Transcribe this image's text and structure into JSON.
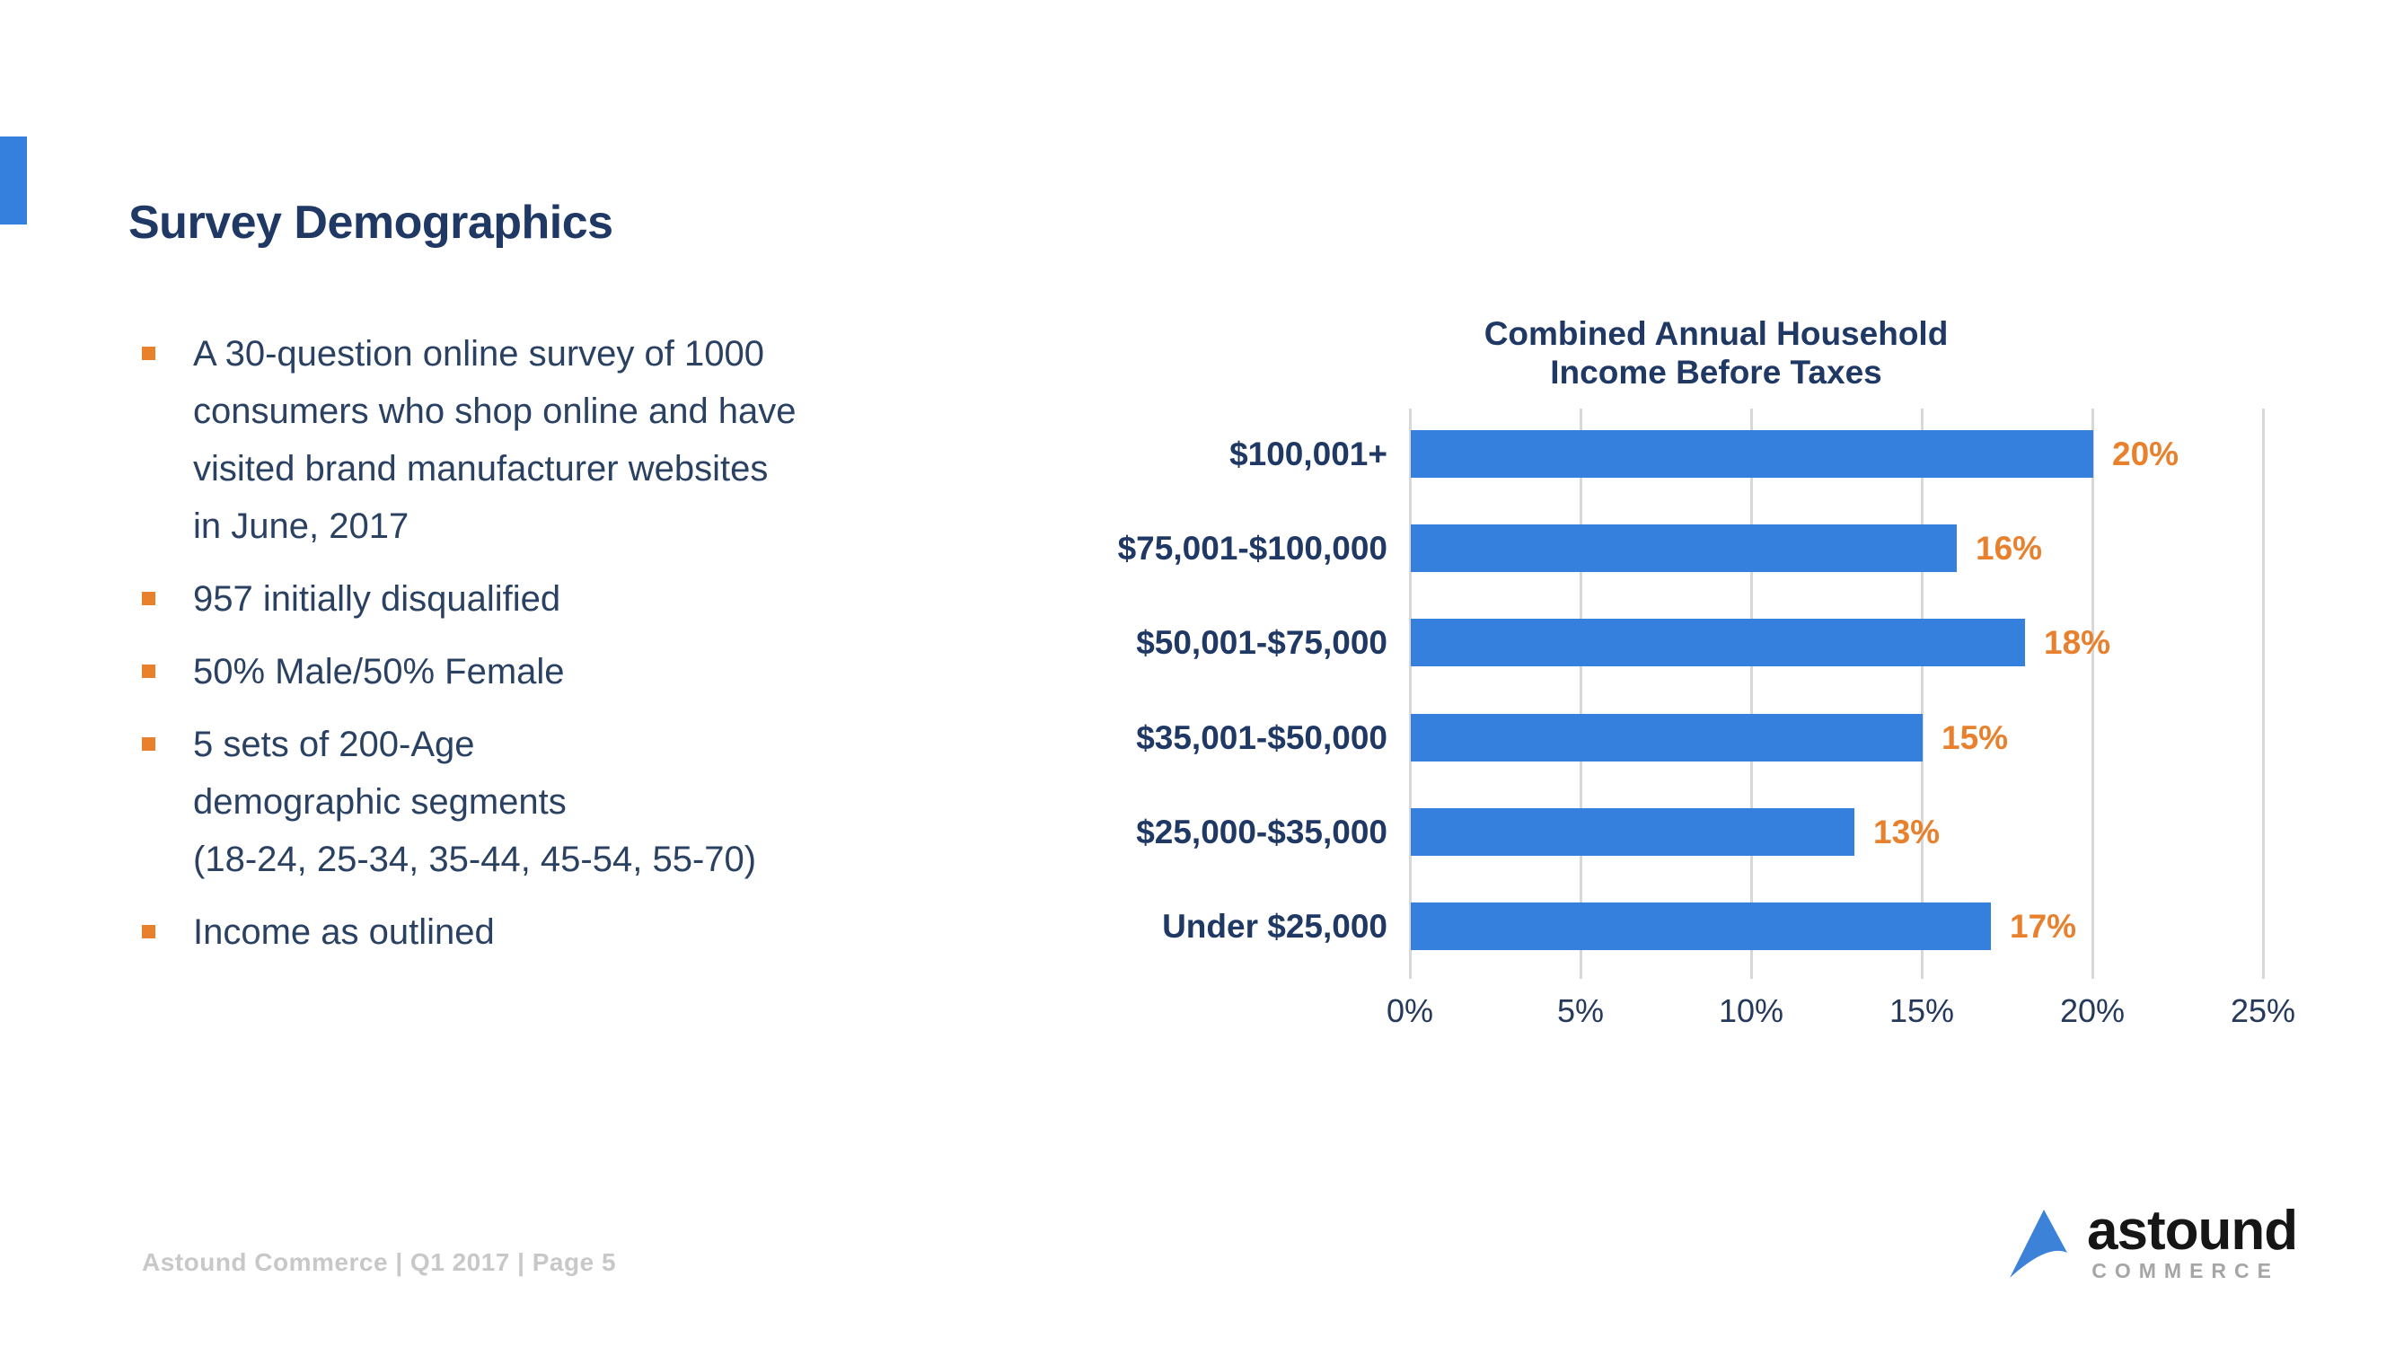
{
  "slide": {
    "title": "Survey Demographics",
    "footer": "Astound Commerce | Q1 2017 | Page 5"
  },
  "bullets": [
    {
      "lines": [
        "A 30-question online survey of 1000",
        "consumers who shop online and have",
        "visited brand manufacturer websites",
        "in June, 2017"
      ]
    },
    {
      "lines": [
        "957 initially disqualified"
      ]
    },
    {
      "lines": [
        "50% Male/50% Female"
      ]
    },
    {
      "lines": [
        "5 sets of 200-Age",
        "demographic segments",
        "(18-24, 25-34, 35-44, 45-54, 55-70)"
      ]
    },
    {
      "lines": [
        "Income as outlined"
      ]
    }
  ],
  "chart_data": {
    "type": "bar",
    "orientation": "horizontal",
    "title": "Combined Annual Household Income Before Taxes",
    "title_lines": [
      "Combined Annual Household",
      "Income Before Taxes"
    ],
    "categories": [
      "$100,001+",
      "$75,001-$100,000",
      "$50,001-$75,000",
      "$35,001-$50,000",
      "$25,000-$35,000",
      "Under $25,000"
    ],
    "values": [
      20,
      16,
      18,
      15,
      13,
      17
    ],
    "value_labels": [
      "20%",
      "16%",
      "18%",
      "15%",
      "13%",
      "17%"
    ],
    "x_ticks": [
      "0%",
      "5%",
      "10%",
      "15%",
      "20%",
      "25%"
    ],
    "xlim": [
      0,
      25
    ],
    "grid": true,
    "legend": "none",
    "bar_color": "#3480dc",
    "value_label_color": "#e8812d",
    "category_label_color": "#1f3864",
    "gridline_color": "#d8d8d8"
  },
  "logo": {
    "word": "astound",
    "subtext": "COMMERCE",
    "arrow_color": "#3c82d9"
  },
  "colors": {
    "accent_blue": "#3480dc",
    "heading_navy": "#1f3864",
    "body_navy": "#2a4162",
    "bullet_orange": "#e8802c",
    "footer_gray": "#c8c8c8"
  }
}
